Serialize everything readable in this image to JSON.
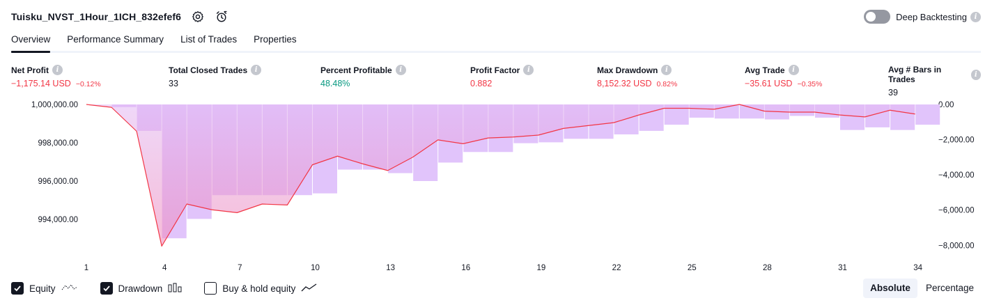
{
  "header": {
    "title": "Tuisku_NVST_1Hour_1ICH_832efef6"
  },
  "deep_backtesting": {
    "label": "Deep Backtesting",
    "enabled": false
  },
  "tabs": [
    {
      "label": "Overview",
      "active": true
    },
    {
      "label": "Performance Summary",
      "active": false
    },
    {
      "label": "List of Trades",
      "active": false
    },
    {
      "label": "Properties",
      "active": false
    }
  ],
  "metrics": [
    {
      "label": "Net Profit",
      "value": "−1,175.14 USD",
      "sub": "−0.12%",
      "color": "red"
    },
    {
      "label": "Total Closed Trades",
      "value": "33",
      "sub": "",
      "color": "dark"
    },
    {
      "label": "Percent Profitable",
      "value": "48.48%",
      "sub": "",
      "color": "green"
    },
    {
      "label": "Profit Factor",
      "value": "0.882",
      "sub": "",
      "color": "red"
    },
    {
      "label": "Max Drawdown",
      "value": "8,152.32 USD",
      "sub": "0.82%",
      "color": "red"
    },
    {
      "label": "Avg Trade",
      "value": "−35.61 USD",
      "sub": "−0.35%",
      "color": "red"
    },
    {
      "label": "Avg # Bars in Trades",
      "value": "39",
      "sub": "",
      "color": "dark"
    }
  ],
  "chart_data": {
    "type": "line",
    "x": [
      1,
      2,
      3,
      4,
      5,
      6,
      7,
      8,
      9,
      10,
      11,
      12,
      13,
      14,
      15,
      16,
      17,
      18,
      19,
      20,
      21,
      22,
      23,
      24,
      25,
      26,
      27,
      28,
      29,
      30,
      31,
      32,
      33,
      34
    ],
    "x_ticks": [
      "1",
      "4",
      "7",
      "10",
      "13",
      "16",
      "19",
      "22",
      "25",
      "28",
      "31",
      "34"
    ],
    "y_left_ticks": [
      "1,000,000.00",
      "998,000.00",
      "996,000.00",
      "994,000.00"
    ],
    "y_left_range": [
      992000,
      1000000
    ],
    "y_right_ticks": [
      "0.00",
      "−2,000.00",
      "−4,000.00",
      "−6,000.00",
      "−8,000.00"
    ],
    "y_right_range": [
      -8700,
      0
    ],
    "series": [
      {
        "type": "line",
        "color": "#f23645",
        "values": [
          1000000,
          999850,
          998600,
          992600,
          994800,
          994500,
          994350,
          994800,
          994750,
          996850,
          997300,
          996900,
          996550,
          997250,
          998150,
          997950,
          998250,
          998300,
          998400,
          998750,
          998900,
          999050,
          999450,
          999800,
          999800,
          999750,
          1000000,
          999650,
          999600,
          999600,
          999450,
          999350,
          999700,
          999500
        ]
      },
      {
        "type": "bar",
        "color": "#e1c4fb",
        "values": [
          0,
          -150,
          -1500,
          -7600,
          -6500,
          -5150,
          -5150,
          -5150,
          -5150,
          -5050,
          -3700,
          -3700,
          -3900,
          -4350,
          -3300,
          -2700,
          -2700,
          -2200,
          -2150,
          -1950,
          -1950,
          -1700,
          -1500,
          -1150,
          -750,
          -800,
          -800,
          -850,
          -650,
          -750,
          -1450,
          -1300,
          -1450,
          -1150
        ]
      }
    ]
  },
  "legend": [
    {
      "label": "Equity",
      "checked": true,
      "icon": "equity-line-icon"
    },
    {
      "label": "Drawdown",
      "checked": true,
      "icon": "drawdown-bars-icon"
    },
    {
      "label": "Buy & hold equity",
      "checked": false,
      "icon": "buy-hold-line-icon"
    }
  ],
  "view": {
    "absolute_label": "Absolute",
    "percentage_label": "Percentage",
    "selected": "Absolute"
  }
}
